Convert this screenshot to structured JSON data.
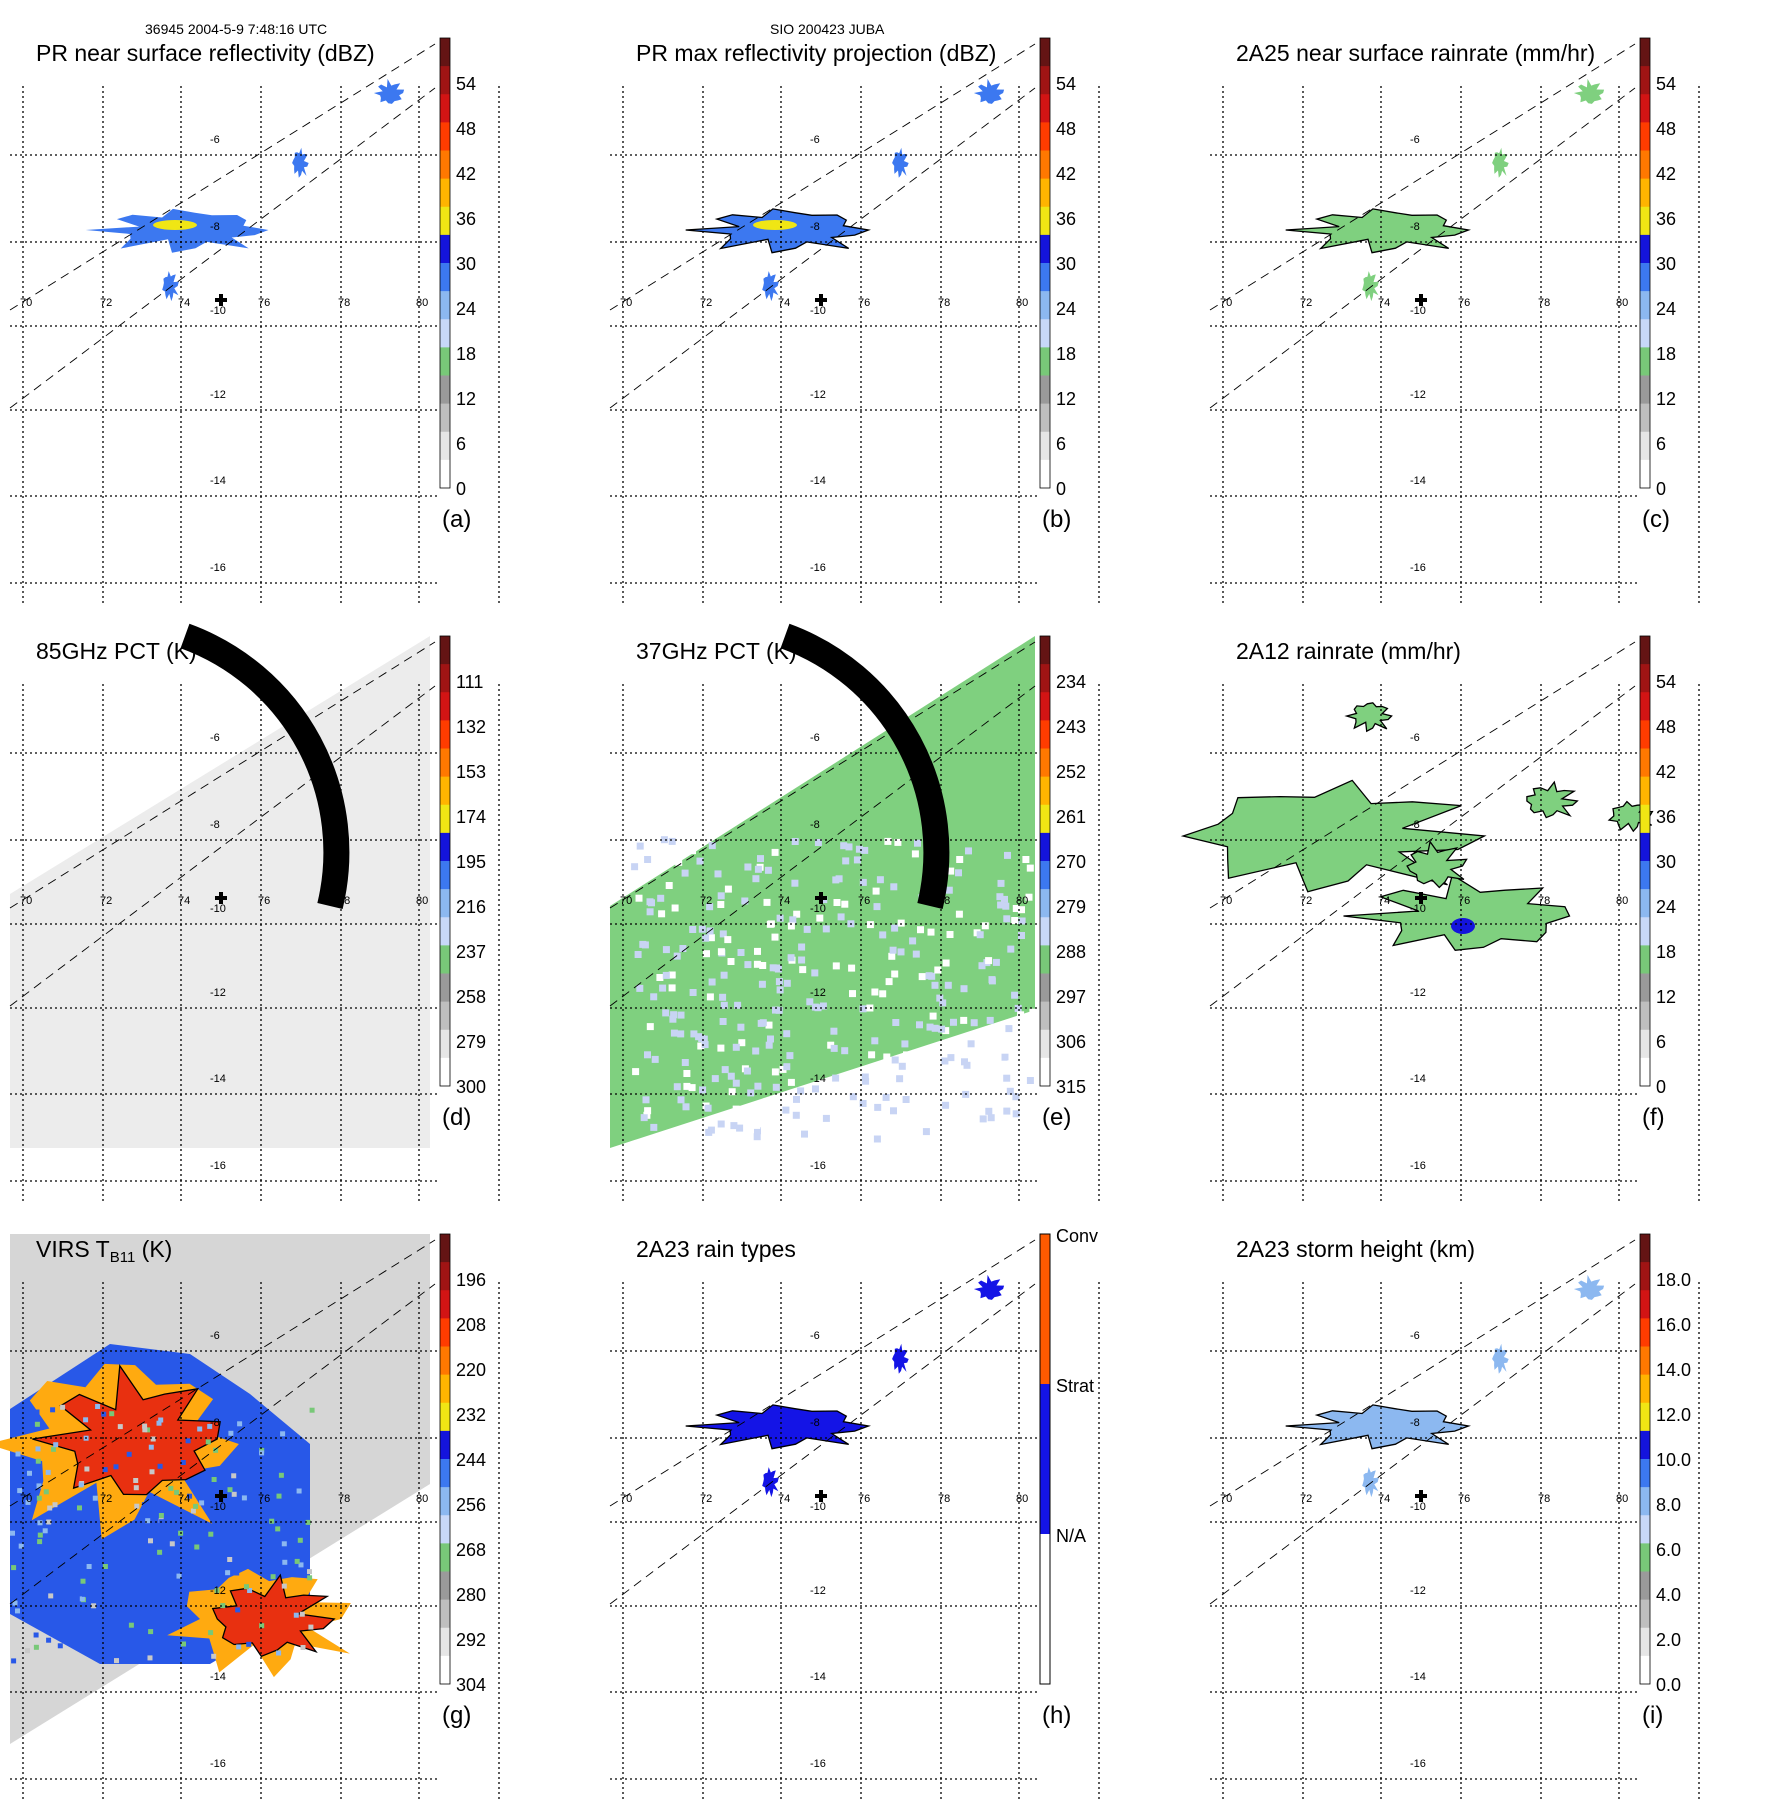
{
  "header": {
    "left": "36945 2004-5-9 7:48:16 UTC",
    "middle": "SIO 200423 JUBA"
  },
  "chart_data": [
    {
      "id": "a",
      "type": "heatmap",
      "title": "PR near surface reflectivity (dBZ)",
      "label": "(a)",
      "colorbar": {
        "ticks": [
          "54",
          "48",
          "42",
          "36",
          "30",
          "24",
          "18",
          "12",
          "6",
          "0"
        ]
      },
      "lon_ticks": [
        "70",
        "72",
        "74",
        "76",
        "78",
        "80"
      ],
      "lat_ticks": [
        "-6",
        "-8",
        "-10",
        "-12",
        "-14",
        "-16"
      ]
    },
    {
      "id": "b",
      "type": "heatmap",
      "title": "PR max reflectivity projection (dBZ)",
      "label": "(b)",
      "colorbar": {
        "ticks": [
          "54",
          "48",
          "42",
          "36",
          "30",
          "24",
          "18",
          "12",
          "6",
          "0"
        ]
      },
      "lon_ticks": [
        "70",
        "72",
        "74",
        "76",
        "78",
        "80"
      ],
      "lat_ticks": [
        "-6",
        "-8",
        "-10",
        "-12",
        "-14",
        "-16"
      ]
    },
    {
      "id": "c",
      "type": "heatmap",
      "title": "2A25 near surface rainrate (mm/hr)",
      "label": "(c)",
      "colorbar": {
        "ticks": [
          "54",
          "48",
          "42",
          "36",
          "30",
          "24",
          "18",
          "12",
          "6",
          "0"
        ]
      },
      "lon_ticks": [
        "70",
        "72",
        "74",
        "76",
        "78",
        "80"
      ],
      "lat_ticks": [
        "-6",
        "-8",
        "-10",
        "-12",
        "-14",
        "-16"
      ]
    },
    {
      "id": "d",
      "type": "heatmap",
      "title": "85GHz PCT (K)",
      "label": "(d)",
      "colorbar": {
        "ticks": [
          "111",
          "132",
          "153",
          "174",
          "195",
          "216",
          "237",
          "258",
          "279",
          "300"
        ]
      },
      "lon_ticks": [
        "70",
        "72",
        "74",
        "76",
        "78",
        "80"
      ],
      "lat_ticks": [
        "-6",
        "-8",
        "-10",
        "-12",
        "-14",
        "-16"
      ]
    },
    {
      "id": "e",
      "type": "heatmap",
      "title": "37GHz PCT (K)",
      "label": "(e)",
      "colorbar": {
        "ticks": [
          "234",
          "243",
          "252",
          "261",
          "270",
          "279",
          "288",
          "297",
          "306",
          "315"
        ]
      },
      "lon_ticks": [
        "70",
        "72",
        "74",
        "76",
        "78",
        "80"
      ],
      "lat_ticks": [
        "-6",
        "-8",
        "-10",
        "-12",
        "-14",
        "-16"
      ]
    },
    {
      "id": "f",
      "type": "heatmap",
      "title": "2A12 rainrate (mm/hr)",
      "label": "(f)",
      "colorbar": {
        "ticks": [
          "54",
          "48",
          "42",
          "36",
          "30",
          "24",
          "18",
          "12",
          "6",
          "0"
        ]
      },
      "lon_ticks": [
        "70",
        "72",
        "74",
        "76",
        "78",
        "80"
      ],
      "lat_ticks": [
        "-6",
        "-8",
        "-10",
        "-12",
        "-14",
        "-16"
      ]
    },
    {
      "id": "g",
      "type": "heatmap",
      "title": "VIRS T",
      "title_sub": "B11",
      "title_end": " (K)",
      "label": "(g)",
      "colorbar": {
        "ticks": [
          "196",
          "208",
          "220",
          "232",
          "244",
          "256",
          "268",
          "280",
          "292",
          "304"
        ]
      },
      "lon_ticks": [
        "70",
        "72",
        "74",
        "76",
        "78",
        "80"
      ],
      "lat_ticks": [
        "-6",
        "-8",
        "-10",
        "-12",
        "-14",
        "-16"
      ]
    },
    {
      "id": "h",
      "type": "heatmap",
      "title": "2A23 rain types",
      "label": "(h)",
      "colorbar": {
        "ticks": [
          "Conv",
          "Strat",
          "N/A"
        ]
      },
      "lon_ticks": [
        "70",
        "72",
        "74",
        "76",
        "78",
        "80"
      ],
      "lat_ticks": [
        "-6",
        "-8",
        "-10",
        "-12",
        "-14",
        "-16"
      ]
    },
    {
      "id": "i",
      "type": "heatmap",
      "title": "2A23 storm height (km)",
      "label": "(i)",
      "colorbar": {
        "ticks": [
          "18.0",
          "16.0",
          "14.0",
          "12.0",
          "10.0",
          "8.0",
          "6.0",
          "4.0",
          "2.0",
          "0.0"
        ]
      },
      "lon_ticks": [
        "70",
        "72",
        "74",
        "76",
        "78",
        "80"
      ],
      "lat_ticks": [
        "-6",
        "-8",
        "-10",
        "-12",
        "-14",
        "-16"
      ]
    }
  ],
  "colors": {
    "reflectivity_scale": [
      "#ffffff",
      "#e6e6e6",
      "#bfbfbf",
      "#9a9a9a",
      "#78c878",
      "#c8d8f8",
      "#8cb8f0",
      "#3c78f0",
      "#1414dc",
      "#f0e614",
      "#ffb400",
      "#ff7800",
      "#ff3c00",
      "#d21414",
      "#a01414",
      "#641414"
    ],
    "pct_scale": [
      "#641414",
      "#a01414",
      "#d21414",
      "#ff3c00",
      "#ff7800",
      "#ffb400",
      "#f0e614",
      "#1414dc",
      "#3c78f0",
      "#8cb8f0",
      "#c8d8f8",
      "#78c878",
      "#9a9a9a",
      "#bfbfbf",
      "#e6e6e6",
      "#ffffff"
    ],
    "rain_types": [
      "#ff5a00",
      "#1414e6",
      "#ffffff"
    ],
    "field_green": "#7fd07f",
    "field_light": "#c8d4f4",
    "field_grey": "#ececec"
  }
}
